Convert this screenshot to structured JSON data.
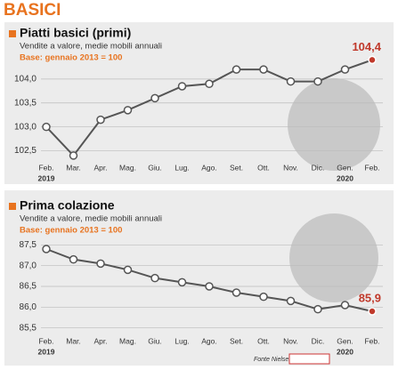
{
  "header": {
    "title": "BASICI"
  },
  "chart_data": [
    {
      "type": "line",
      "title": "Piatti basici (primi)",
      "subtitle": "Vendite a valore, medie mobili annuali",
      "note": "Base: gennaio 2013 = 100",
      "categories": [
        "Feb.",
        "Mar.",
        "Apr.",
        "Mag.",
        "Giu.",
        "Lug.",
        "Ago.",
        "Set.",
        "Ott.",
        "Nov.",
        "Dic.",
        "Gen.",
        "Feb."
      ],
      "year_labels": [
        "2019",
        null,
        null,
        null,
        null,
        null,
        null,
        null,
        null,
        null,
        null,
        "2020",
        null
      ],
      "values": [
        103.0,
        102.4,
        103.15,
        103.35,
        103.6,
        103.85,
        103.9,
        104.2,
        104.2,
        103.95,
        103.95,
        104.2,
        104.4
      ],
      "value_labels": [
        null,
        null,
        null,
        null,
        null,
        null,
        null,
        null,
        null,
        null,
        null,
        null,
        "104,4"
      ],
      "color": "#555555",
      "ylim": [
        102.25,
        104.5
      ],
      "yticks": [
        {
          "value": 102.5,
          "label": "102,5"
        },
        {
          "value": 103.0,
          "label": "103,0"
        },
        {
          "value": 103.5,
          "label": "103,5"
        },
        {
          "value": 104.0,
          "label": "104,0"
        }
      ],
      "grid": true
    },
    {
      "type": "line",
      "title": "Prima colazione",
      "subtitle": "Vendite a valore, medie mobili annuali",
      "note": "Base: gennaio 2013 = 100",
      "categories": [
        "Feb.",
        "Mar.",
        "Apr.",
        "Mag.",
        "Giu.",
        "Lug.",
        "Ago.",
        "Set.",
        "Ott.",
        "Nov.",
        "Dic.",
        "Gen.",
        "Feb."
      ],
      "year_labels": [
        "2019",
        null,
        null,
        null,
        null,
        null,
        null,
        null,
        null,
        null,
        null,
        "2020",
        null
      ],
      "values": [
        87.4,
        87.15,
        87.05,
        86.9,
        86.7,
        86.6,
        86.5,
        86.35,
        86.25,
        86.15,
        85.95,
        86.05,
        85.9
      ],
      "value_labels": [
        null,
        null,
        null,
        null,
        null,
        null,
        null,
        null,
        null,
        null,
        null,
        null,
        "85,9"
      ],
      "color": "#555555",
      "ylim": [
        85.3,
        87.7
      ],
      "yticks": [
        {
          "value": 85.5,
          "label": "85,5"
        },
        {
          "value": 86.0,
          "label": "86,0"
        },
        {
          "value": 86.5,
          "label": "86,5"
        },
        {
          "value": 87.0,
          "label": "87,0"
        },
        {
          "value": 87.5,
          "label": "87,5"
        }
      ],
      "grid": true
    }
  ],
  "footer": {
    "source": "Fonte Nielsen"
  }
}
